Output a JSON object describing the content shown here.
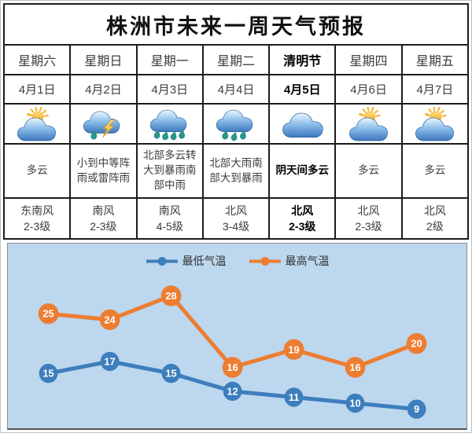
{
  "title": "株洲市未来一周天气预报",
  "table": {
    "columns": [
      {
        "day": "星期六",
        "date": "4月1日",
        "icon": "sun-cloud-icon",
        "weather": "多云",
        "wind_dir": "东南风",
        "wind_level": "2-3级"
      },
      {
        "day": "星期日",
        "date": "4月2日",
        "icon": "thunder-rain-icon",
        "weather": "小到中等阵雨或雷阵雨",
        "wind_dir": "南风",
        "wind_level": "2-3级"
      },
      {
        "day": "星期一",
        "date": "4月3日",
        "icon": "heavy-rain-icon",
        "weather": "北部多云转大到暴雨南部中雨",
        "wind_dir": "南风",
        "wind_level": "4-5级"
      },
      {
        "day": "星期二",
        "date": "4月4日",
        "icon": "rain-icon",
        "weather": "北部大雨南部大到暴雨",
        "wind_dir": "北风",
        "wind_level": "3-4级"
      },
      {
        "day": "清明节",
        "date": "4月5日",
        "icon": "cloud-icon",
        "weather": "阴天间多云",
        "wind_dir": "北风",
        "wind_level": "2-3级"
      },
      {
        "day": "星期四",
        "date": "4月6日",
        "icon": "sun-cloud-icon",
        "weather": "多云",
        "wind_dir": "北风",
        "wind_level": "2-3级"
      },
      {
        "day": "星期五",
        "date": "4月7日",
        "icon": "sun-cloud-icon",
        "weather": "多云",
        "wind_dir": "北风",
        "wind_level": "2级"
      }
    ]
  },
  "chart_data": {
    "type": "line",
    "categories": [
      "4月1日",
      "4月2日",
      "4月3日",
      "4月4日",
      "4月5日",
      "4月6日",
      "4月7日"
    ],
    "series": [
      {
        "id": "low-temp",
        "name": "最低气温",
        "color": "#3d7ebd",
        "values": [
          15,
          17,
          15,
          12,
          11,
          10,
          9
        ]
      },
      {
        "id": "high-temp",
        "name": "最高气温",
        "color": "#ed7d31",
        "values": [
          25,
          24,
          28,
          16,
          19,
          16,
          20
        ]
      }
    ],
    "value_labels": true,
    "label_color": "#ffffff",
    "background": "#bdd7ee",
    "legend_position": "top-center",
    "grid": false,
    "ylim": [
      9,
      28
    ]
  }
}
